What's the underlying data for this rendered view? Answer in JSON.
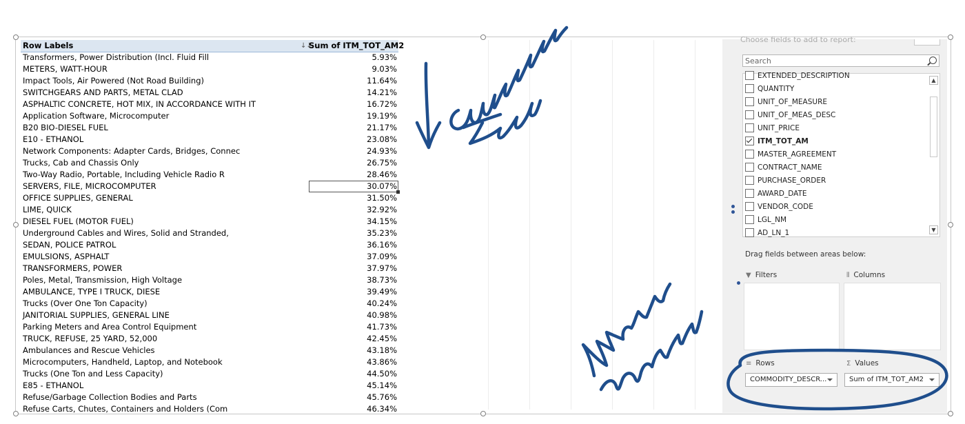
{
  "pivot": {
    "header_label": "Row Labels",
    "header_value": "Sum of ITM_TOT_AM2",
    "sort_indicator": "↓↓",
    "rows": [
      {
        "label": "Transformers, Power Distribution (Incl. Fluid Fill",
        "value": "5.93%"
      },
      {
        "label": "METERS, WATT-HOUR",
        "value": "9.03%"
      },
      {
        "label": "Impact Tools, Air Powered (Not Road Building)",
        "value": "11.64%"
      },
      {
        "label": "SWITCHGEARS AND PARTS, METAL CLAD",
        "value": "14.21%"
      },
      {
        "label": "ASPHALTIC CONCRETE, HOT MIX, IN ACCORDANCE WITH IT",
        "value": "16.72%"
      },
      {
        "label": "Application Software, Microcomputer",
        "value": "19.19%"
      },
      {
        "label": "B20 BIO-DIESEL FUEL",
        "value": "21.17%"
      },
      {
        "label": "E10 - ETHANOL",
        "value": "23.08%"
      },
      {
        "label": "Network Components: Adapter Cards, Bridges, Connec",
        "value": "24.93%"
      },
      {
        "label": "Trucks, Cab and Chassis Only",
        "value": "26.75%"
      },
      {
        "label": "Two-Way Radio, Portable, Including Vehicle Radio R",
        "value": "28.46%"
      },
      {
        "label": "SERVERS, FILE, MICROCOMPUTER",
        "value": "30.07%"
      },
      {
        "label": "OFFICE SUPPLIES, GENERAL",
        "value": "31.50%"
      },
      {
        "label": "LIME, QUICK",
        "value": "32.92%"
      },
      {
        "label": "DIESEL FUEL (MOTOR FUEL)",
        "value": "34.15%"
      },
      {
        "label": "Underground Cables and Wires, Solid and Stranded,",
        "value": "35.23%"
      },
      {
        "label": "SEDAN, POLICE PATROL",
        "value": "36.16%"
      },
      {
        "label": "EMULSIONS, ASPHALT",
        "value": "37.09%"
      },
      {
        "label": "TRANSFORMERS, POWER",
        "value": "37.97%"
      },
      {
        "label": "Poles, Metal, Transmission, High Voltage",
        "value": "38.73%"
      },
      {
        "label": "AMBULANCE, TYPE I TRUCK, DIESE",
        "value": "39.49%"
      },
      {
        "label": "Trucks (Over One Ton Capacity)",
        "value": "40.24%"
      },
      {
        "label": "JANITORIAL SUPPLIES, GENERAL LINE",
        "value": "40.98%"
      },
      {
        "label": "Parking Meters and Area Control Equipment",
        "value": "41.73%"
      },
      {
        "label": "TRUCK, REFUSE, 25 YARD, 52,000",
        "value": "42.45%"
      },
      {
        "label": "Ambulances and Rescue Vehicles",
        "value": "43.18%"
      },
      {
        "label": "Microcomputers, Handheld, Laptop, and Notebook",
        "value": "43.86%"
      },
      {
        "label": "Trucks (One Ton and Less Capacity)",
        "value": "44.50%"
      },
      {
        "label": "E85 - ETHANOL",
        "value": "45.14%"
      },
      {
        "label": "Refuse/Garbage Collection Bodies and Parts",
        "value": "45.76%"
      },
      {
        "label": "Refuse Carts, Chutes, Containers and Holders (Com",
        "value": "46.34%"
      }
    ],
    "selected_row": 11
  },
  "field_list": {
    "cut_heading": "Choose fields to add to report:",
    "search_placeholder": "Search",
    "fields": [
      {
        "name": "EXTENDED_DESCRIPTION",
        "checked": false
      },
      {
        "name": "QUANTITY",
        "checked": false
      },
      {
        "name": "UNIT_OF_MEASURE",
        "checked": false
      },
      {
        "name": "UNIT_OF_MEAS_DESC",
        "checked": false
      },
      {
        "name": "UNIT_PRICE",
        "checked": false
      },
      {
        "name": "ITM_TOT_AM",
        "checked": true
      },
      {
        "name": "MASTER_AGREEMENT",
        "checked": false
      },
      {
        "name": "CONTRACT_NAME",
        "checked": false
      },
      {
        "name": "PURCHASE_ORDER",
        "checked": false
      },
      {
        "name": "AWARD_DATE",
        "checked": false
      },
      {
        "name": "VENDOR_CODE",
        "checked": false
      },
      {
        "name": "LGL_NM",
        "checked": false
      },
      {
        "name": "AD_LN_1",
        "checked": false
      }
    ],
    "drag_label": "Drag fields between areas below:",
    "areas": {
      "filters": {
        "label": "Filters",
        "icon": "filter-icon"
      },
      "columns": {
        "label": "Columns",
        "icon": "columns-icon"
      },
      "rows": {
        "label": "Rows",
        "icon": "rows-icon",
        "value": "COMMODITY_DESCR..."
      },
      "values": {
        "label": "Values",
        "icon": "sigma-icon",
        "value": "Sum of ITM_TOT_AM2"
      }
    }
  },
  "annotations": {
    "note_1": "Cumulative Total",
    "note_2": "Note the Columns",
    "ink_color": "#1f4e8c"
  }
}
